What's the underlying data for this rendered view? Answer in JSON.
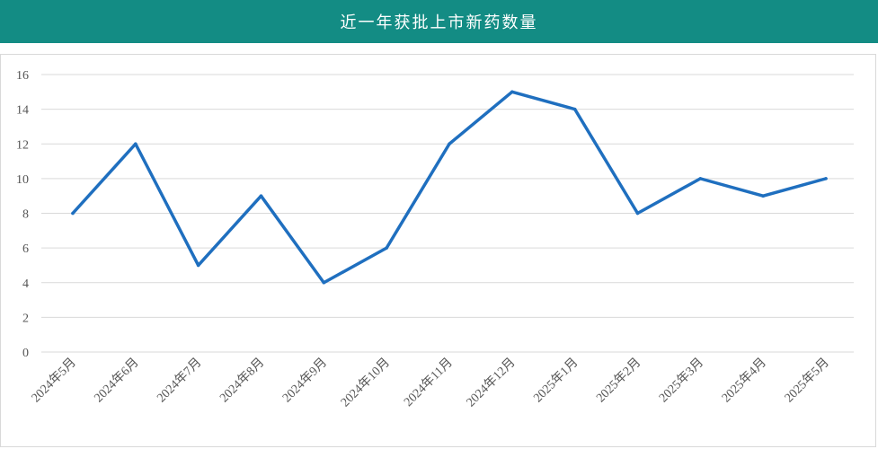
{
  "chart_data": {
    "type": "line",
    "title": "近一年获批上市新药数量",
    "x": [
      "2024年5月",
      "2024年6月",
      "2024年7月",
      "2024年8月",
      "2024年9月",
      "2024年10月",
      "2024年11月",
      "2024年12月",
      "2025年1月",
      "2025年2月",
      "2025年3月",
      "2025年4月",
      "2025年5月"
    ],
    "series": [
      {
        "values": [
          8,
          12,
          5,
          9,
          4,
          6,
          12,
          15,
          14,
          8,
          10,
          9,
          10
        ]
      }
    ],
    "yticks": [
      0,
      2,
      4,
      6,
      8,
      10,
      12,
      14,
      16
    ],
    "ylim": [
      0,
      16
    ],
    "xlabel": "",
    "ylabel": "",
    "grid": true,
    "legend": "none",
    "colors": {
      "header_bg": "#138c84",
      "line": "#1f6fbf",
      "grid": "#d9d9d9"
    }
  }
}
